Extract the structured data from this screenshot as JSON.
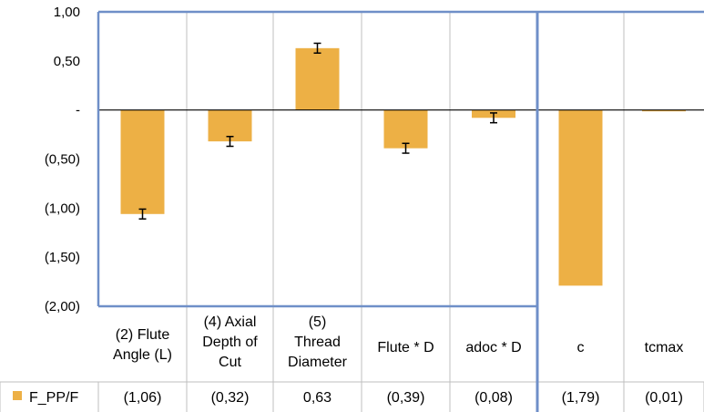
{
  "chart_data": {
    "type": "bar",
    "categories": [
      [
        "(2) Flute",
        "Angle (L)"
      ],
      [
        "(4) Axial",
        "Depth of",
        "Cut"
      ],
      [
        "(5)",
        "Thread",
        "Diameter"
      ],
      [
        "Flute * D"
      ],
      [
        "adoc * D"
      ],
      [
        "c"
      ],
      [
        "tcmax"
      ]
    ],
    "series": [
      {
        "name": "F_PP/F",
        "values": [
          -1.06,
          -0.32,
          0.63,
          -0.39,
          -0.08,
          -1.79,
          -0.01
        ],
        "errors": [
          0.05,
          0.05,
          0.05,
          0.05,
          0.05,
          null,
          null
        ],
        "value_labels": [
          "(1,06)",
          "(0,32)",
          "0,63",
          "(0,39)",
          "(0,08)",
          "(1,79)",
          "(0,01)"
        ],
        "color": "#EDB045"
      }
    ],
    "ylim": [
      -2.0,
      1.0
    ],
    "yticks": [
      {
        "value": 1.0,
        "label": "1,00"
      },
      {
        "value": 0.5,
        "label": "0,50"
      },
      {
        "value": 0.0,
        "label": "-"
      },
      {
        "value": -0.5,
        "label": "(0,50)"
      },
      {
        "value": -1.0,
        "label": "(1,00)"
      },
      {
        "value": -1.5,
        "label": "(1,50)"
      },
      {
        "value": -2.0,
        "label": "(2,00)"
      }
    ],
    "grid": "vertical",
    "legend": "bottom-left data table",
    "group_border_color": "#6F8FC8"
  }
}
